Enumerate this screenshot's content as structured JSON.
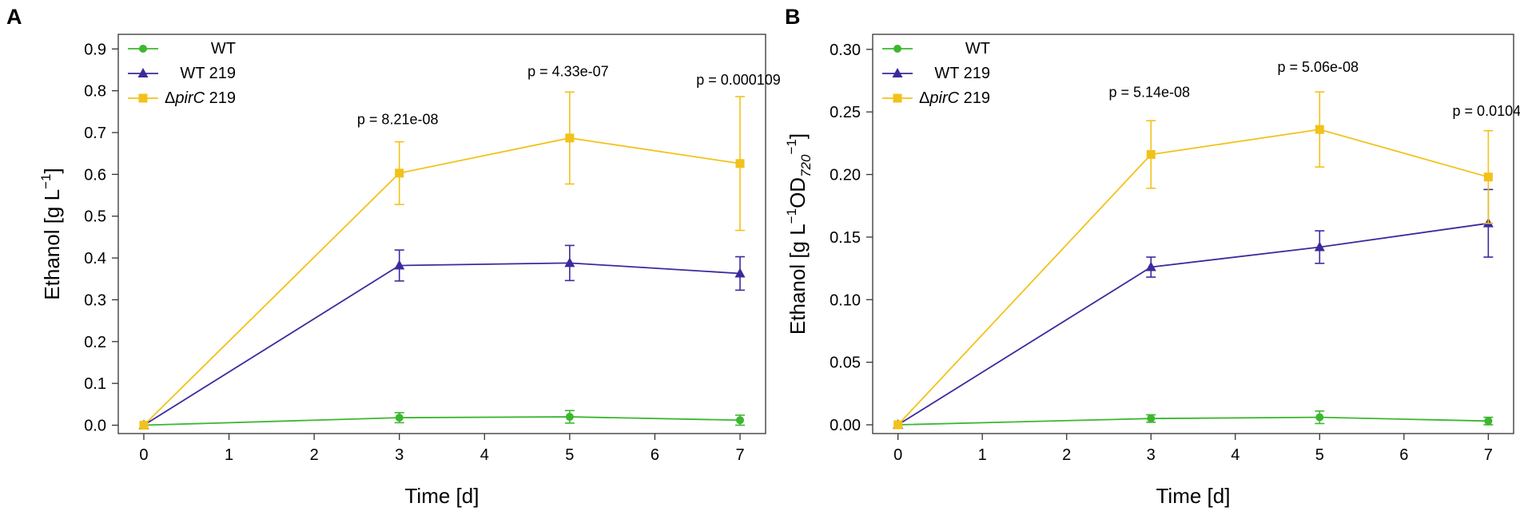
{
  "colors": {
    "wt": "#3cb72f",
    "wt219": "#3c2a9c",
    "pirc219": "#f2c21a"
  },
  "chart_data": [
    {
      "panel_label": "A",
      "type": "line",
      "xlabel": "Time [d]",
      "ylabel_parts": [
        "Ethanol [g L",
        "−1",
        "]"
      ],
      "x_ticks": [
        0,
        1,
        2,
        3,
        4,
        5,
        6,
        7
      ],
      "y_ticks": [
        0.0,
        0.1,
        0.2,
        0.3,
        0.4,
        0.5,
        0.6,
        0.7,
        0.8,
        0.9
      ],
      "y_tick_labels": [
        "0.0",
        "0.1",
        "0.2",
        "0.3",
        "0.4",
        "0.5",
        "0.6",
        "0.7",
        "0.8",
        "0.9"
      ],
      "xlim": [
        -0.3,
        7.3
      ],
      "ylim": [
        -0.02,
        0.935
      ],
      "legend_position": "top-left",
      "series": [
        {
          "key": "wt",
          "name": "WT",
          "name_italic": "",
          "name_suffix": "",
          "marker": "circle",
          "x": [
            0,
            3,
            5,
            7
          ],
          "y": [
            0.0,
            0.018,
            0.02,
            0.012
          ],
          "err": [
            0.003,
            0.012,
            0.015,
            0.012
          ]
        },
        {
          "key": "wt219",
          "name": "WT 219",
          "name_italic": "",
          "name_suffix": "",
          "marker": "triangle",
          "x": [
            0,
            3,
            5,
            7
          ],
          "y": [
            0.0,
            0.382,
            0.388,
            0.363
          ],
          "err": [
            0.003,
            0.037,
            0.042,
            0.04
          ]
        },
        {
          "key": "pirc219",
          "name": "Δ",
          "name_italic": "pirC",
          "name_suffix": " 219",
          "marker": "square",
          "x": [
            0,
            3,
            5,
            7
          ],
          "y": [
            0.0,
            0.603,
            0.687,
            0.626
          ],
          "err": [
            0.003,
            0.075,
            0.11,
            0.16
          ]
        }
      ],
      "annotations": [
        {
          "text": "p = 8.21e-08",
          "x": 3,
          "y": 0.72
        },
        {
          "text": "p = 4.33e-07",
          "x": 5,
          "y": 0.835
        },
        {
          "text": "p = 0.000109",
          "x": 7,
          "y": 0.815
        }
      ]
    },
    {
      "panel_label": "B",
      "type": "line",
      "xlabel": "Time [d]",
      "ylabel_parts": [
        "Ethanol [g L",
        "−1",
        "OD",
        "720",
        "−1",
        "]"
      ],
      "x_ticks": [
        0,
        1,
        2,
        3,
        4,
        5,
        6,
        7
      ],
      "y_ticks": [
        0.0,
        0.05,
        0.1,
        0.15,
        0.2,
        0.25,
        0.3
      ],
      "y_tick_labels": [
        "0.00",
        "0.05",
        "0.10",
        "0.15",
        "0.20",
        "0.25",
        "0.30"
      ],
      "xlim": [
        -0.3,
        7.3
      ],
      "ylim": [
        -0.007,
        0.312
      ],
      "legend_position": "top-left",
      "series": [
        {
          "key": "wt",
          "name": "WT",
          "name_italic": "",
          "name_suffix": "",
          "marker": "circle",
          "x": [
            0,
            3,
            5,
            7
          ],
          "y": [
            0.0,
            0.005,
            0.006,
            0.003
          ],
          "err": [
            0.001,
            0.003,
            0.005,
            0.003
          ]
        },
        {
          "key": "wt219",
          "name": "WT 219",
          "name_italic": "",
          "name_suffix": "",
          "marker": "triangle",
          "x": [
            0,
            3,
            5,
            7
          ],
          "y": [
            0.0,
            0.126,
            0.142,
            0.161
          ],
          "err": [
            0.001,
            0.008,
            0.013,
            0.027
          ]
        },
        {
          "key": "pirc219",
          "name": "Δ",
          "name_italic": "pirC",
          "name_suffix": " 219",
          "marker": "square",
          "x": [
            0,
            3,
            5,
            7
          ],
          "y": [
            0.0,
            0.216,
            0.236,
            0.198
          ],
          "err": [
            0.001,
            0.027,
            0.03,
            0.037
          ]
        }
      ],
      "annotations": [
        {
          "text": "p = 5.14e-08",
          "x": 3,
          "y": 0.262
        },
        {
          "text": "p = 5.06e-08",
          "x": 5,
          "y": 0.282
        },
        {
          "text": "p = 0.0104",
          "x": 7,
          "y": 0.247
        }
      ]
    }
  ]
}
